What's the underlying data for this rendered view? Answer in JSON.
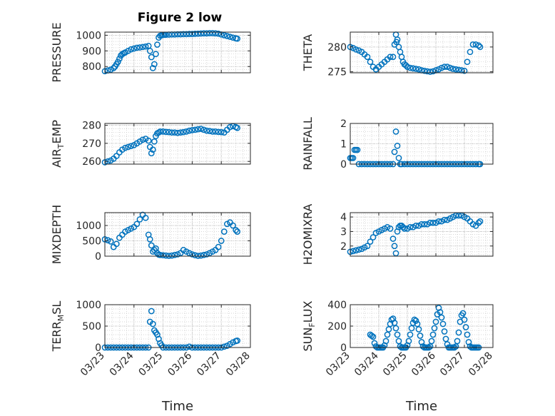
{
  "figure": {
    "title": "Figure 2 low"
  },
  "chart_data": [
    {
      "type": "scatter",
      "ylabel": "PRESSURE",
      "ylim": [
        760,
        1020
      ],
      "yticks": [
        "800",
        "900",
        "1000"
      ],
      "xlim": [
        0,
        5
      ],
      "xticks": [],
      "grid": true,
      "series": [
        {
          "x": [
            0.0,
            0.1,
            0.2,
            0.3,
            0.35,
            0.4,
            0.45,
            0.5,
            0.55,
            0.6,
            0.65,
            0.7,
            0.8,
            0.9,
            1.0,
            1.1,
            1.2,
            1.3,
            1.4,
            1.5,
            1.55,
            1.6,
            1.65,
            1.7,
            1.75,
            1.8,
            1.85,
            1.9,
            1.95,
            2.0,
            2.05,
            2.1,
            2.2,
            2.3,
            2.4,
            2.5,
            2.6,
            2.7,
            2.8,
            2.9,
            3.0,
            3.1,
            3.2,
            3.3,
            3.4,
            3.5,
            3.6,
            3.7,
            3.8,
            3.9,
            4.0,
            4.1,
            4.2,
            4.3,
            4.4,
            4.5,
            4.55
          ],
          "y": [
            770,
            775,
            780,
            790,
            800,
            815,
            830,
            850,
            870,
            880,
            885,
            890,
            900,
            910,
            915,
            920,
            922,
            925,
            928,
            932,
            900,
            860,
            790,
            815,
            880,
            940,
            985,
            997,
            1000,
            1002,
            1003,
            1003,
            1004,
            1005,
            1005,
            1006,
            1006,
            1007,
            1007,
            1008,
            1008,
            1009,
            1010,
            1011,
            1012,
            1012,
            1013,
            1013,
            1012,
            1010,
            1005,
            1000,
            995,
            990,
            985,
            980,
            978
          ]
        }
      ]
    },
    {
      "type": "scatter",
      "ylabel": "THETA",
      "ylim": [
        274.8,
        283
      ],
      "yticks": [
        "275",
        "280"
      ],
      "xlim": [
        0,
        5
      ],
      "xticks": [],
      "grid": true,
      "series": [
        {
          "x": [
            0.0,
            0.1,
            0.2,
            0.3,
            0.4,
            0.5,
            0.6,
            0.7,
            0.8,
            0.9,
            1.0,
            1.1,
            1.2,
            1.3,
            1.4,
            1.5,
            1.55,
            1.6,
            1.62,
            1.65,
            1.7,
            1.75,
            1.8,
            1.85,
            1.9,
            1.95,
            2.0,
            2.1,
            2.2,
            2.3,
            2.4,
            2.5,
            2.6,
            2.7,
            2.8,
            2.9,
            3.0,
            3.1,
            3.2,
            3.3,
            3.4,
            3.5,
            3.6,
            3.7,
            3.8,
            3.9,
            4.0,
            4.1,
            4.2,
            4.3,
            4.4,
            4.5,
            4.55
          ],
          "y": [
            280.0,
            279.8,
            279.5,
            279.3,
            279.0,
            278.5,
            278.0,
            277.0,
            276.0,
            275.5,
            276.0,
            276.5,
            277.0,
            277.5,
            278.0,
            278.0,
            280.5,
            282.5,
            281.0,
            281.5,
            280.0,
            279.0,
            278.0,
            277.0,
            276.5,
            276.3,
            276.0,
            275.8,
            275.7,
            275.6,
            275.5,
            275.3,
            275.2,
            275.1,
            275.0,
            275.1,
            275.3,
            275.5,
            275.8,
            276.0,
            276.0,
            275.8,
            275.6,
            275.5,
            275.4,
            275.3,
            275.2,
            277.0,
            279.0,
            280.5,
            280.5,
            280.3,
            280.0
          ]
        }
      ]
    },
    {
      "type": "scatter",
      "ylabel": "AIR_TEMP",
      "ylim": [
        258.5,
        281
      ],
      "yticks": [
        "260",
        "270",
        "280"
      ],
      "xlim": [
        0,
        5
      ],
      "xticks": [],
      "grid": true,
      "series": [
        {
          "x": [
            0.0,
            0.1,
            0.2,
            0.3,
            0.4,
            0.5,
            0.6,
            0.7,
            0.8,
            0.9,
            1.0,
            1.1,
            1.2,
            1.3,
            1.4,
            1.5,
            1.55,
            1.6,
            1.65,
            1.7,
            1.75,
            1.8,
            1.85,
            1.9,
            2.0,
            2.1,
            2.2,
            2.3,
            2.4,
            2.5,
            2.6,
            2.7,
            2.8,
            2.9,
            3.0,
            3.1,
            3.2,
            3.3,
            3.4,
            3.5,
            3.6,
            3.7,
            3.8,
            3.9,
            4.0,
            4.1,
            4.2,
            4.3,
            4.4,
            4.5,
            4.55
          ],
          "y": [
            259.5,
            260.0,
            260.5,
            261.5,
            263.0,
            265.0,
            266.5,
            267.5,
            268.0,
            268.5,
            269.0,
            270.0,
            271.0,
            272.0,
            272.5,
            271.5,
            268.0,
            264.5,
            266.5,
            271.0,
            274.0,
            275.5,
            276.0,
            276.5,
            276.5,
            276.3,
            276.2,
            276.0,
            276.0,
            275.8,
            276.0,
            276.2,
            276.5,
            277.0,
            277.3,
            277.5,
            277.8,
            278.0,
            277.5,
            277.0,
            276.8,
            276.5,
            276.5,
            276.3,
            276.2,
            276.0,
            277.5,
            279.0,
            279.5,
            279.0,
            278.5
          ]
        }
      ]
    },
    {
      "type": "scatter",
      "ylabel": "RAINFALL",
      "ylim": [
        0,
        2
      ],
      "yticks": [
        "0",
        "1",
        "2"
      ],
      "xlim": [
        0,
        5
      ],
      "xticks": [],
      "grid": true,
      "series": [
        {
          "x": [
            0.0,
            0.1,
            0.2,
            0.3,
            0.4,
            0.5,
            0.6,
            0.7,
            0.8,
            0.9,
            1.0,
            1.1,
            1.2,
            1.3,
            1.4,
            1.5,
            1.55,
            1.6,
            1.65,
            1.7,
            1.75,
            1.8,
            1.9,
            2.0,
            2.1,
            2.2,
            2.3,
            2.4,
            2.5,
            2.6,
            2.7,
            2.8,
            2.9,
            3.0,
            3.1,
            3.2,
            3.3,
            3.4,
            3.5,
            3.6,
            3.7,
            3.8,
            3.9,
            4.0,
            4.1,
            4.2,
            4.3,
            4.4,
            4.5,
            4.55,
            0.05,
            0.15,
            0.25
          ],
          "y": [
            0.3,
            0.3,
            0.7,
            0,
            0,
            0,
            0,
            0,
            0,
            0,
            0,
            0,
            0,
            0,
            0,
            0,
            0.6,
            1.6,
            0.9,
            0.3,
            0,
            0,
            0,
            0,
            0,
            0,
            0,
            0,
            0,
            0,
            0,
            0,
            0,
            0,
            0,
            0,
            0,
            0,
            0,
            0,
            0,
            0,
            0,
            0,
            0,
            0,
            0,
            0,
            0,
            0,
            0.3,
            0.7,
            0.7
          ]
        }
      ]
    },
    {
      "type": "scatter",
      "ylabel": "MIXDEPTH",
      "ylim": [
        0,
        1420
      ],
      "yticks": [
        "0",
        "500",
        "1000"
      ],
      "xlim": [
        0,
        5
      ],
      "xticks": [],
      "grid": true,
      "series": [
        {
          "x": [
            0.0,
            0.1,
            0.2,
            0.3,
            0.4,
            0.5,
            0.6,
            0.7,
            0.8,
            0.9,
            1.0,
            1.1,
            1.2,
            1.3,
            1.4,
            1.5,
            1.55,
            1.6,
            1.65,
            1.7,
            1.75,
            1.8,
            1.85,
            1.9,
            2.0,
            2.1,
            2.2,
            2.3,
            2.4,
            2.5,
            2.6,
            2.7,
            2.8,
            2.9,
            3.0,
            3.1,
            3.2,
            3.3,
            3.4,
            3.5,
            3.6,
            3.7,
            3.8,
            3.9,
            4.0,
            4.1,
            4.2,
            4.3,
            4.4,
            4.5,
            4.55
          ],
          "y": [
            550,
            520,
            480,
            300,
            400,
            600,
            700,
            800,
            850,
            900,
            950,
            1050,
            1200,
            1350,
            1250,
            700,
            550,
            350,
            150,
            200,
            250,
            100,
            50,
            40,
            30,
            20,
            10,
            20,
            40,
            60,
            100,
            200,
            150,
            100,
            60,
            30,
            10,
            20,
            40,
            60,
            100,
            150,
            200,
            300,
            500,
            800,
            1050,
            1100,
            1000,
            850,
            800
          ]
        }
      ]
    },
    {
      "type": "scatter",
      "ylabel": "H2OMIXRA",
      "ylim": [
        1.3,
        4.3
      ],
      "yticks": [
        "2",
        "3",
        "4"
      ],
      "xlim": [
        0,
        5
      ],
      "xticks": [],
      "grid": true,
      "series": [
        {
          "x": [
            0.0,
            0.1,
            0.2,
            0.3,
            0.4,
            0.5,
            0.6,
            0.7,
            0.8,
            0.9,
            1.0,
            1.1,
            1.2,
            1.3,
            1.4,
            1.5,
            1.55,
            1.6,
            1.65,
            1.7,
            1.75,
            1.8,
            1.85,
            1.9,
            2.0,
            2.1,
            2.2,
            2.3,
            2.4,
            2.5,
            2.6,
            2.7,
            2.8,
            2.9,
            3.0,
            3.1,
            3.2,
            3.3,
            3.4,
            3.5,
            3.6,
            3.7,
            3.8,
            3.9,
            4.0,
            4.1,
            4.2,
            4.3,
            4.4,
            4.5,
            4.55
          ],
          "y": [
            1.6,
            1.65,
            1.7,
            1.75,
            1.8,
            1.9,
            2.0,
            2.3,
            2.6,
            2.9,
            3.0,
            3.1,
            3.2,
            3.3,
            3.2,
            2.5,
            2.0,
            1.5,
            3.0,
            3.3,
            3.4,
            3.4,
            3.3,
            3.2,
            3.2,
            3.3,
            3.3,
            3.4,
            3.4,
            3.5,
            3.5,
            3.5,
            3.6,
            3.6,
            3.6,
            3.7,
            3.7,
            3.8,
            3.8,
            3.9,
            4.0,
            4.1,
            4.1,
            4.1,
            4.0,
            3.9,
            3.7,
            3.5,
            3.4,
            3.6,
            3.7
          ]
        }
      ]
    },
    {
      "type": "scatter",
      "ylabel": "TERR_MSL",
      "ylim": [
        0,
        1000
      ],
      "yticks": [
        "0",
        "500",
        "1000"
      ],
      "xlim": [
        0,
        5
      ],
      "xticks": [
        "03/23",
        "03/24",
        "03/25",
        "03/26",
        "03/27",
        "03/28"
      ],
      "xlabel": "Time",
      "grid": true,
      "series": [
        {
          "x": [
            0.0,
            0.1,
            0.2,
            0.3,
            0.4,
            0.5,
            0.6,
            0.7,
            0.8,
            0.9,
            1.0,
            1.1,
            1.2,
            1.3,
            1.4,
            1.5,
            1.55,
            1.6,
            1.65,
            1.7,
            1.75,
            1.8,
            1.85,
            1.9,
            1.95,
            2.0,
            2.1,
            2.2,
            2.3,
            2.4,
            2.5,
            2.6,
            2.7,
            2.8,
            2.9,
            3.0,
            3.1,
            3.2,
            3.3,
            3.4,
            3.5,
            3.6,
            3.7,
            3.8,
            3.9,
            4.0,
            4.1,
            4.2,
            4.3,
            4.4,
            4.5,
            4.55
          ],
          "y": [
            0,
            0,
            0,
            0,
            0,
            0,
            0,
            0,
            0,
            0,
            0,
            0,
            0,
            0,
            0,
            0,
            600,
            850,
            550,
            400,
            350,
            300,
            200,
            100,
            50,
            0,
            0,
            0,
            0,
            0,
            0,
            0,
            0,
            0,
            20,
            0,
            0,
            0,
            0,
            0,
            0,
            0,
            0,
            0,
            0,
            0,
            20,
            40,
            80,
            120,
            150,
            160
          ]
        }
      ]
    },
    {
      "type": "scatter",
      "ylabel": "SUN_FLUX",
      "ylim": [
        0,
        400
      ],
      "yticks": [
        "0",
        "200",
        "400"
      ],
      "xlim": [
        0,
        5
      ],
      "xticks": [
        "03/23",
        "03/24",
        "03/25",
        "03/26",
        "03/27",
        "03/28"
      ],
      "xlabel": "Time",
      "grid": true,
      "series": [
        {
          "x": [
            0.7,
            0.75,
            0.8,
            0.85,
            0.9,
            0.95,
            1.0,
            1.05,
            1.1,
            1.15,
            1.2,
            1.25,
            1.3,
            1.35,
            1.4,
            1.45,
            1.5,
            1.55,
            1.6,
            1.65,
            1.7,
            1.75,
            1.8,
            1.85,
            1.9,
            1.95,
            2.0,
            2.05,
            2.1,
            2.15,
            2.2,
            2.25,
            2.3,
            2.35,
            2.4,
            2.45,
            2.5,
            2.55,
            2.6,
            2.65,
            2.7,
            2.75,
            2.8,
            2.85,
            2.9,
            2.95,
            3.0,
            3.05,
            3.1,
            3.15,
            3.2,
            3.25,
            3.3,
            3.35,
            3.4,
            3.45,
            3.5,
            3.55,
            3.6,
            3.65,
            3.7,
            3.75,
            3.8,
            3.85,
            3.9,
            3.95,
            4.0,
            4.05,
            4.1,
            4.15,
            4.2,
            4.25,
            4.3,
            4.35,
            4.4,
            4.45,
            4.5
          ],
          "y": [
            120,
            110,
            100,
            40,
            10,
            0,
            0,
            0,
            0,
            0,
            20,
            60,
            120,
            170,
            220,
            260,
            270,
            230,
            180,
            120,
            60,
            10,
            0,
            0,
            0,
            0,
            20,
            60,
            120,
            180,
            230,
            260,
            250,
            220,
            170,
            110,
            50,
            10,
            0,
            0,
            0,
            0,
            10,
            60,
            120,
            180,
            240,
            310,
            370,
            330,
            280,
            220,
            150,
            80,
            30,
            0,
            0,
            0,
            0,
            0,
            10,
            60,
            140,
            240,
            300,
            320,
            260,
            190,
            120,
            50,
            10,
            0,
            0,
            0,
            0,
            0,
            0
          ]
        }
      ]
    }
  ]
}
